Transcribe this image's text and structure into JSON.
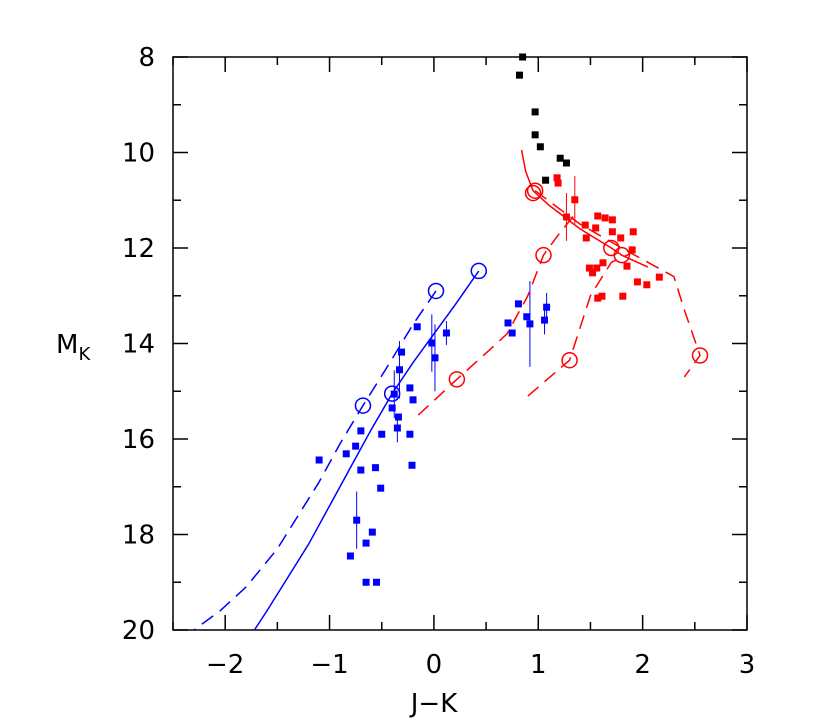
{
  "chart_data": {
    "type": "scatter",
    "xlabel": "J−K",
    "ylabel": {
      "main": "M",
      "sub": "K"
    },
    "xlim": [
      -2.5,
      3
    ],
    "ylim": [
      20,
      8
    ],
    "xticks": [
      {
        "value": -2,
        "label": "−2"
      },
      {
        "value": -1,
        "label": "−1"
      },
      0,
      1,
      2,
      3
    ],
    "yticks": [
      8,
      10,
      12,
      14,
      16,
      18,
      20
    ],
    "xticks_minor": [
      -2.5,
      -1.5,
      -0.5,
      0.5,
      1.5,
      2.5
    ],
    "yticks_minor": [
      9,
      11,
      13,
      15,
      17,
      19
    ],
    "series": [
      {
        "style": "points",
        "color": "#000000",
        "x": [
          0.85,
          0.82,
          0.97,
          0.97,
          1.02,
          1.21,
          1.27,
          1.07
        ],
        "y": [
          8.0,
          8.38,
          9.15,
          9.63,
          9.88,
          10.12,
          10.22,
          10.58
        ]
      },
      {
        "style": "points",
        "color": "#ff0000",
        "x": [
          1.18,
          1.19,
          1.35,
          1.27,
          1.45,
          1.57,
          1.64,
          1.71,
          1.55,
          1.71,
          1.91,
          1.46,
          1.79,
          1.9,
          1.85,
          2.16,
          2.04,
          1.95,
          1.49,
          1.56,
          1.52,
          1.62,
          1.57,
          1.61,
          1.81
        ],
        "y": [
          10.53,
          10.64,
          10.99,
          11.35,
          11.52,
          11.33,
          11.37,
          11.41,
          11.58,
          11.66,
          11.66,
          11.79,
          11.79,
          12.04,
          12.38,
          12.61,
          12.77,
          12.71,
          12.42,
          12.42,
          12.52,
          12.31,
          13.05,
          13.01,
          13.01
        ],
        "yerr": [
          null,
          null,
          0.5,
          0.5,
          null,
          null,
          null,
          null,
          null,
          null,
          null,
          null,
          null,
          null,
          null,
          null,
          null,
          null,
          null,
          null,
          null,
          null,
          null,
          null,
          null
        ]
      },
      {
        "style": "points",
        "color": "#0000ff",
        "x": [
          -0.16,
          0.12,
          -0.02,
          0.01,
          -0.31,
          -0.33,
          -0.23,
          -0.2,
          -0.38,
          -0.4,
          -0.34,
          -0.35,
          -0.23,
          -0.5,
          -0.7,
          -0.75,
          -0.84,
          -1.1,
          -0.21,
          -0.56,
          -0.7,
          -0.51,
          -0.74,
          -0.59,
          -0.65,
          -0.8,
          -0.65,
          -0.55,
          0.81,
          0.71,
          0.75,
          0.89,
          0.92,
          1.08,
          1.06
        ],
        "y": [
          13.65,
          13.78,
          13.99,
          14.3,
          14.18,
          14.55,
          14.93,
          15.18,
          15.06,
          15.35,
          15.54,
          15.77,
          15.9,
          15.9,
          15.83,
          16.15,
          16.31,
          16.44,
          16.55,
          16.6,
          16.65,
          17.03,
          17.7,
          17.95,
          18.18,
          18.45,
          19.0,
          19.0,
          13.17,
          13.57,
          13.78,
          13.44,
          13.59,
          13.24,
          13.51
        ],
        "yerr": [
          null,
          0.25,
          0.6,
          0.7,
          null,
          0.6,
          null,
          null,
          0.5,
          null,
          null,
          0.3,
          null,
          null,
          null,
          null,
          null,
          null,
          null,
          null,
          null,
          null,
          0.6,
          null,
          null,
          null,
          null,
          null,
          null,
          null,
          null,
          null,
          0.9,
          0.3,
          0.3
        ]
      },
      {
        "style": "line",
        "color": "#0000ff",
        "x": [
          0.43,
          0.2,
          0.0,
          -0.2,
          -0.4,
          -0.6,
          -0.8,
          -1.0,
          -1.2,
          -1.4,
          -1.6,
          -1.72
        ],
        "y": [
          12.48,
          13.2,
          13.8,
          14.4,
          15.05,
          15.8,
          16.6,
          17.4,
          18.2,
          18.9,
          19.6,
          20.0
        ]
      },
      {
        "style": "dashed-line",
        "color": "#0000ff",
        "x": [
          0.02,
          -0.2,
          -0.45,
          -0.68,
          -0.9,
          -1.1,
          -1.3,
          -1.5,
          -1.8,
          -2.05,
          -2.3
        ],
        "y": [
          12.9,
          13.6,
          14.5,
          15.3,
          16.1,
          16.9,
          17.6,
          18.3,
          19.1,
          19.6,
          20.0
        ]
      },
      {
        "style": "line",
        "color": "#ff0000",
        "x": [
          0.84,
          0.88,
          0.95,
          1.1,
          1.4,
          1.7,
          1.8,
          2.05
        ],
        "y": [
          9.95,
          10.4,
          10.8,
          11.1,
          11.6,
          12.0,
          12.15,
          12.4
        ]
      },
      {
        "style": "dashed-line",
        "color": "#ff0000",
        "x": [
          -0.15,
          0.22,
          0.5,
          0.7,
          0.9,
          1.05,
          1.2,
          1.35
        ],
        "y": [
          15.5,
          14.75,
          14.2,
          13.8,
          13.0,
          12.15,
          11.7,
          11.3
        ]
      },
      {
        "style": "dashed-line",
        "color": "#ff0000",
        "x": [
          0.97,
          1.4,
          1.8,
          2.3,
          2.4,
          2.55,
          2.4
        ],
        "y": [
          10.8,
          11.5,
          12.0,
          12.6,
          13.3,
          14.25,
          14.7
        ]
      },
      {
        "style": "dashed-line",
        "color": "#ff0000",
        "x": [
          0.9,
          1.3,
          1.5,
          1.7,
          1.9
        ],
        "y": [
          15.1,
          14.35,
          13.0,
          12.3,
          12.1
        ]
      },
      {
        "style": "open-circles",
        "color": "#0000ff",
        "x": [
          0.43,
          0.02,
          -0.4,
          -0.68
        ],
        "y": [
          12.48,
          12.9,
          15.05,
          15.3
        ]
      },
      {
        "style": "open-circles",
        "color": "#ff0000",
        "x": [
          0.97,
          0.95,
          1.05,
          1.7,
          1.8,
          0.22,
          1.3,
          2.55
        ],
        "y": [
          10.8,
          10.85,
          12.15,
          12.0,
          12.15,
          14.75,
          14.35,
          14.25
        ]
      }
    ]
  }
}
